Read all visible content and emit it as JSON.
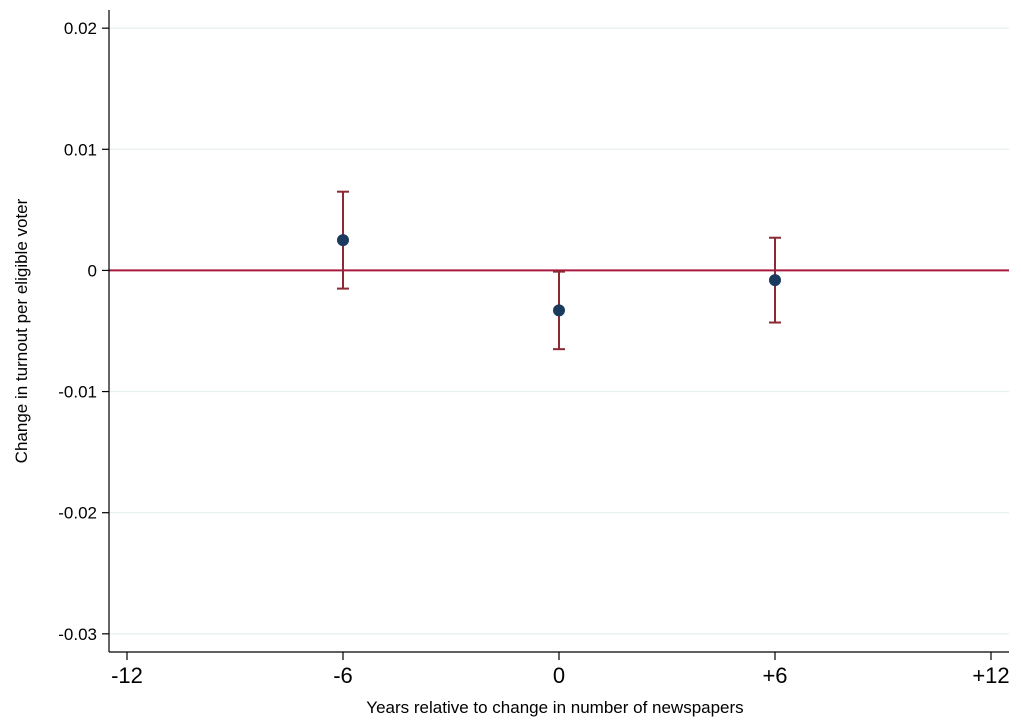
{
  "chart_data": {
    "type": "scatter",
    "title": "",
    "xlabel": "Years relative to change in number of newspapers",
    "ylabel": "Change in turnout per eligible voter",
    "xlim": [
      -12.5,
      12.5
    ],
    "ylim": [
      -0.0315,
      0.0215
    ],
    "x_ticks": [
      -12,
      -6,
      0,
      6,
      12
    ],
    "x_tick_labels": [
      "-12",
      "-6",
      "0",
      "+6",
      "+12"
    ],
    "y_ticks": [
      0.02,
      0.01,
      0,
      -0.01,
      -0.02,
      -0.03
    ],
    "y_tick_labels": [
      "0.02",
      "0.01",
      "0",
      "-0.01",
      "-0.02",
      "-0.03"
    ],
    "grid": true,
    "reference_line": {
      "y": 0,
      "color": "#a8193d"
    },
    "point_color": "#1a3a5e",
    "errorbar_color": "#8b2a32",
    "points": [
      {
        "x": -6,
        "y": 0.0025,
        "ci_low": -0.0015,
        "ci_high": 0.0065
      },
      {
        "x": 0,
        "y": -0.0033,
        "ci_low": -0.0065,
        "ci_high": -0.0001
      },
      {
        "x": 6,
        "y": -0.0008,
        "ci_low": -0.0043,
        "ci_high": 0.0027
      }
    ]
  }
}
